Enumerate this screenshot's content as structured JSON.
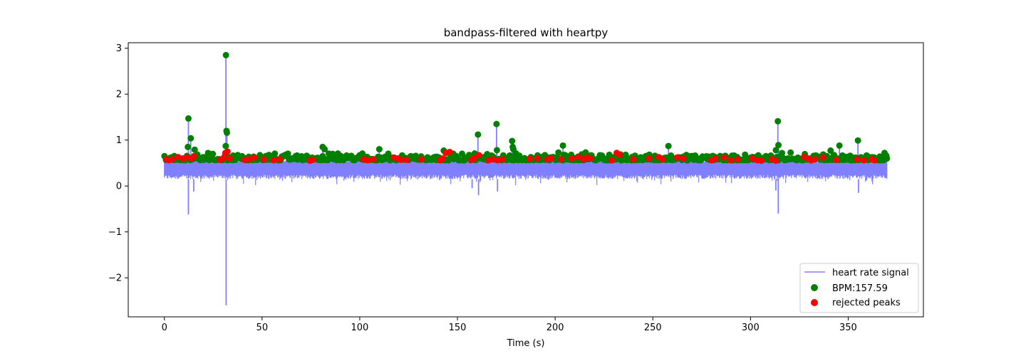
{
  "chart_data": {
    "type": "scatter",
    "title": "bandpass-filtered with heartpy",
    "xlabel": "Time (s)",
    "ylabel": "",
    "xlim": [
      -18.5,
      388.5
    ],
    "ylim": [
      -2.85,
      3.12
    ],
    "xticks": [
      0,
      50,
      100,
      150,
      200,
      250,
      300,
      350
    ],
    "yticks": [
      -2,
      -1,
      0,
      1,
      2,
      3
    ],
    "ytick_labels": [
      "−2",
      "−1",
      "0",
      "1",
      "2",
      "3"
    ],
    "grid": false,
    "legend_position": "lower-right",
    "colors": {
      "signal": "#8080ff",
      "accepted": "#008000",
      "rejected": "#ff0000"
    },
    "series": [
      {
        "name": "heart rate signal",
        "kind": "line",
        "x_range": [
          0,
          370
        ],
        "baseline_top": 0.58,
        "baseline_bottom": 0.15,
        "spikes": [
          {
            "x": 12.3,
            "y": 1.47
          },
          {
            "x": 12.3,
            "y": -0.62
          },
          {
            "x": 13.5,
            "y": 1.04
          },
          {
            "x": 15.0,
            "y": -0.12
          },
          {
            "x": 31.5,
            "y": 2.85
          },
          {
            "x": 31.6,
            "y": -2.6
          },
          {
            "x": 31.8,
            "y": 1.2
          },
          {
            "x": 32.0,
            "y": 1.16
          },
          {
            "x": 31.4,
            "y": 0.87
          },
          {
            "x": 81.0,
            "y": 0.85
          },
          {
            "x": 110.0,
            "y": 0.8
          },
          {
            "x": 157.5,
            "y": -0.05
          },
          {
            "x": 160.5,
            "y": 1.12
          },
          {
            "x": 160.8,
            "y": -0.2
          },
          {
            "x": 170.0,
            "y": 1.35
          },
          {
            "x": 170.2,
            "y": 0.78
          },
          {
            "x": 170.5,
            "y": -0.12
          },
          {
            "x": 178.0,
            "y": 0.98
          },
          {
            "x": 178.3,
            "y": 0.85
          },
          {
            "x": 204.0,
            "y": 0.88
          },
          {
            "x": 258.0,
            "y": 0.87
          },
          {
            "x": 313.0,
            "y": -0.1
          },
          {
            "x": 314.0,
            "y": 1.41
          },
          {
            "x": 314.3,
            "y": 0.89
          },
          {
            "x": 314.2,
            "y": -0.6
          },
          {
            "x": 345.5,
            "y": 0.88
          },
          {
            "x": 355.0,
            "y": 0.99
          },
          {
            "x": 355.3,
            "y": -0.15
          }
        ]
      },
      {
        "name": "BPM:157.59",
        "kind": "points",
        "outlier_points": [
          {
            "x": 12.3,
            "y": 1.47
          },
          {
            "x": 13.5,
            "y": 1.04
          },
          {
            "x": 31.5,
            "y": 2.85
          },
          {
            "x": 31.8,
            "y": 1.2
          },
          {
            "x": 32.0,
            "y": 1.16
          },
          {
            "x": 31.4,
            "y": 0.87
          },
          {
            "x": 12.0,
            "y": 0.85
          },
          {
            "x": 15.5,
            "y": 0.79
          },
          {
            "x": 81.0,
            "y": 0.85
          },
          {
            "x": 82.0,
            "y": 0.8
          },
          {
            "x": 110.0,
            "y": 0.8
          },
          {
            "x": 143.0,
            "y": 0.77
          },
          {
            "x": 160.5,
            "y": 1.12
          },
          {
            "x": 170.0,
            "y": 1.35
          },
          {
            "x": 170.2,
            "y": 0.78
          },
          {
            "x": 178.0,
            "y": 0.98
          },
          {
            "x": 178.3,
            "y": 0.85
          },
          {
            "x": 178.6,
            "y": 0.8
          },
          {
            "x": 204.0,
            "y": 0.88
          },
          {
            "x": 258.0,
            "y": 0.87
          },
          {
            "x": 314.0,
            "y": 1.41
          },
          {
            "x": 314.3,
            "y": 0.89
          },
          {
            "x": 313.0,
            "y": 0.78
          },
          {
            "x": 345.5,
            "y": 0.88
          },
          {
            "x": 341.0,
            "y": 0.77
          },
          {
            "x": 355.0,
            "y": 0.99
          },
          {
            "x": 369.5,
            "y": 0.66
          }
        ],
        "band": {
          "x_range": [
            0,
            370
          ],
          "y_range": [
            0.56,
            0.74
          ],
          "count": 640
        }
      },
      {
        "name": "rejected peaks",
        "kind": "points",
        "points": [
          {
            "x": 1.0,
            "y": 0.58
          },
          {
            "x": 2.5,
            "y": 0.56
          },
          {
            "x": 4.0,
            "y": 0.58
          },
          {
            "x": 7.0,
            "y": 0.63
          },
          {
            "x": 9.5,
            "y": 0.6
          },
          {
            "x": 11.5,
            "y": 0.62
          },
          {
            "x": 14.0,
            "y": 0.6
          },
          {
            "x": 15.2,
            "y": 0.65
          },
          {
            "x": 28.5,
            "y": 0.57
          },
          {
            "x": 30.0,
            "y": 0.6
          },
          {
            "x": 31.2,
            "y": 0.72
          },
          {
            "x": 32.3,
            "y": 0.75
          },
          {
            "x": 33.5,
            "y": 0.6
          },
          {
            "x": 41.0,
            "y": 0.57
          },
          {
            "x": 43.5,
            "y": 0.58
          },
          {
            "x": 46.0,
            "y": 0.62
          },
          {
            "x": 51.0,
            "y": 0.58
          },
          {
            "x": 56.0,
            "y": 0.56
          },
          {
            "x": 59.0,
            "y": 0.58
          },
          {
            "x": 74.5,
            "y": 0.55
          },
          {
            "x": 76.0,
            "y": 0.57
          },
          {
            "x": 102.0,
            "y": 0.58
          },
          {
            "x": 104.0,
            "y": 0.56
          },
          {
            "x": 107.0,
            "y": 0.58
          },
          {
            "x": 117.5,
            "y": 0.62
          },
          {
            "x": 119.5,
            "y": 0.6
          },
          {
            "x": 121.0,
            "y": 0.57
          },
          {
            "x": 124.0,
            "y": 0.57
          },
          {
            "x": 131.5,
            "y": 0.58
          },
          {
            "x": 141.0,
            "y": 0.56
          },
          {
            "x": 142.5,
            "y": 0.6
          },
          {
            "x": 144.0,
            "y": 0.72
          },
          {
            "x": 146.0,
            "y": 0.74
          },
          {
            "x": 157.0,
            "y": 0.57
          },
          {
            "x": 158.5,
            "y": 0.6
          },
          {
            "x": 161.0,
            "y": 0.67
          },
          {
            "x": 166.0,
            "y": 0.56
          },
          {
            "x": 168.0,
            "y": 0.58
          },
          {
            "x": 170.5,
            "y": 0.56
          },
          {
            "x": 173.0,
            "y": 0.58
          },
          {
            "x": 187.0,
            "y": 0.59
          },
          {
            "x": 191.0,
            "y": 0.6
          },
          {
            "x": 196.0,
            "y": 0.58
          },
          {
            "x": 198.0,
            "y": 0.6
          },
          {
            "x": 203.0,
            "y": 0.58
          },
          {
            "x": 208.5,
            "y": 0.6
          },
          {
            "x": 212.0,
            "y": 0.63
          },
          {
            "x": 214.5,
            "y": 0.58
          },
          {
            "x": 216.0,
            "y": 0.62
          },
          {
            "x": 218.0,
            "y": 0.6
          },
          {
            "x": 229.0,
            "y": 0.56
          },
          {
            "x": 231.5,
            "y": 0.72
          },
          {
            "x": 233.0,
            "y": 0.68
          },
          {
            "x": 240.0,
            "y": 0.58
          },
          {
            "x": 248.0,
            "y": 0.6
          },
          {
            "x": 253.0,
            "y": 0.63
          },
          {
            "x": 255.0,
            "y": 0.58
          },
          {
            "x": 262.5,
            "y": 0.62
          },
          {
            "x": 265.5,
            "y": 0.6
          },
          {
            "x": 280.0,
            "y": 0.56
          },
          {
            "x": 282.0,
            "y": 0.59
          },
          {
            "x": 286.5,
            "y": 0.62
          },
          {
            "x": 290.0,
            "y": 0.56
          },
          {
            "x": 293.5,
            "y": 0.58
          },
          {
            "x": 301.0,
            "y": 0.6
          },
          {
            "x": 303.5,
            "y": 0.56
          },
          {
            "x": 305.5,
            "y": 0.55
          },
          {
            "x": 311.0,
            "y": 0.58
          },
          {
            "x": 313.0,
            "y": 0.55
          },
          {
            "x": 327.5,
            "y": 0.63
          },
          {
            "x": 329.5,
            "y": 0.6
          },
          {
            "x": 331.0,
            "y": 0.56
          },
          {
            "x": 333.0,
            "y": 0.58
          },
          {
            "x": 337.0,
            "y": 0.62
          },
          {
            "x": 344.0,
            "y": 0.57
          },
          {
            "x": 354.5,
            "y": 0.58
          },
          {
            "x": 358.0,
            "y": 0.56
          },
          {
            "x": 362.0,
            "y": 0.58
          },
          {
            "x": 363.5,
            "y": 0.56
          }
        ]
      }
    ]
  }
}
